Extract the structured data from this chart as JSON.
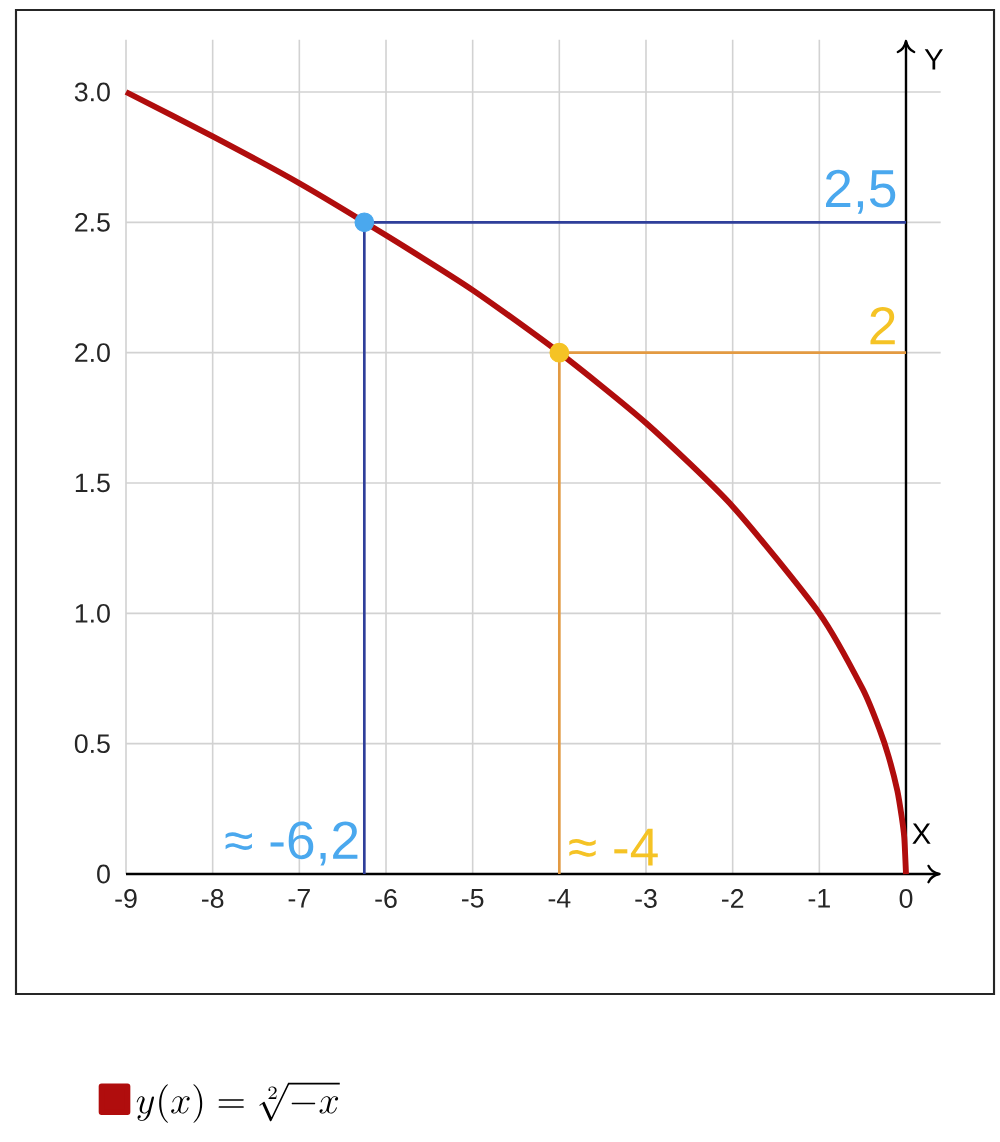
{
  "chart_data": {
    "type": "line",
    "xlabel": "X",
    "ylabel": "Y",
    "xlim": [
      -9,
      0.4
    ],
    "ylim": [
      0,
      3.2
    ],
    "xticks": [
      -9,
      -8,
      -7,
      -6,
      -5,
      -4,
      -3,
      -2,
      -1,
      0
    ],
    "yticks": [
      0,
      0.5,
      {
        "value": 1,
        "label": "1.0"
      },
      1.5,
      {
        "value": 2,
        "label": "2.0"
      },
      2.5,
      {
        "value": 3,
        "label": "3.0"
      }
    ],
    "grid": true,
    "legend": "bottom",
    "series": [
      {
        "name": "y(x) = \\sqrt[2]{-x}",
        "color": "#b00d0d",
        "x": [
          -9,
          -8,
          -7,
          -6,
          -5,
          -4,
          -3,
          -2,
          -1,
          -0.5,
          -0.3,
          -0.2,
          -0.1,
          -0.05,
          -0.02,
          0
        ],
        "values": [
          3,
          2.83,
          2.65,
          2.45,
          2.24,
          2,
          1.73,
          1.41,
          1,
          0.71,
          0.55,
          0.45,
          0.32,
          0.22,
          0.14,
          0
        ]
      },
      {
        "color": "#2f3f9a",
        "x": [
          -6.25,
          -6.25,
          0
        ],
        "values": [
          0,
          2.5,
          2.5
        ]
      },
      {
        "color": "#e39a42",
        "x": [
          -4,
          -4,
          0
        ],
        "values": [
          0,
          2,
          2
        ]
      },
      {
        "type": "scatter",
        "marker": "circle",
        "color": "#4aa8ee",
        "x": [
          -6.25
        ],
        "values": [
          2.5
        ]
      },
      {
        "type": "scatter",
        "marker": "circle",
        "color": "#f5c325",
        "x": [
          -4
        ],
        "values": [
          2
        ]
      }
    ],
    "annotations": [
      {
        "text": "2,5",
        "x": 0,
        "y": 2.5
      },
      {
        "text": "2",
        "x": 0,
        "y": 2
      },
      {
        "text": "≈ -6,2",
        "x": -6.2,
        "y": 0
      },
      {
        "text": "≈ -4",
        "x": -4,
        "y": 0
      }
    ]
  }
}
